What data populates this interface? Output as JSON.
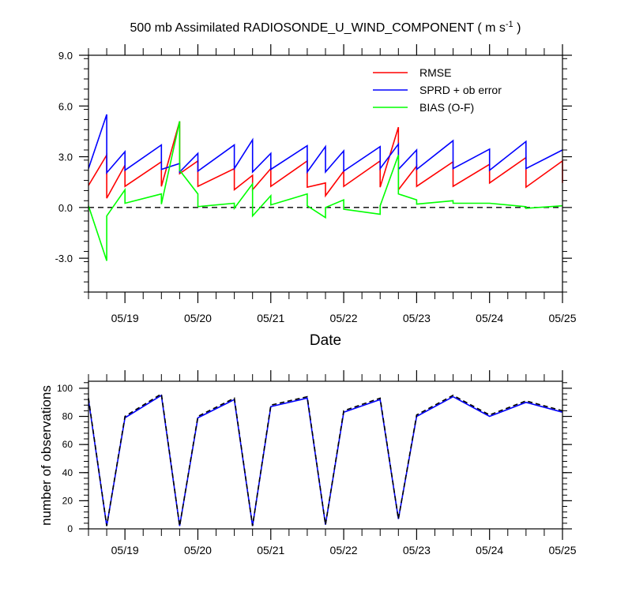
{
  "figure": {
    "title_main": "500 mb Assimilated RADIOSONDE_U_WIND_COMPONENT ( m s",
    "title_sup": "-1",
    "title_end": " )"
  },
  "chart_data": [
    {
      "type": "line",
      "xlabel": "Date",
      "ylabel": "",
      "x_ticks": [
        "05/19",
        "05/20",
        "05/21",
        "05/22",
        "05/23",
        "05/24",
        "05/25"
      ],
      "x_tick_days": [
        19,
        20,
        21,
        22,
        23,
        24,
        25
      ],
      "xlim": [
        18.5,
        25.0
      ],
      "ylim": [
        -5.0,
        9.0
      ],
      "y_ticks": [
        9.0,
        6.0,
        3.0,
        0.0,
        -3.0
      ],
      "y_tick_labels": [
        "9.0",
        "6.0",
        "3.0",
        "0.0",
        "-3.0"
      ],
      "zero_reference_line": {
        "y": 0.0,
        "style": "dashed"
      },
      "legend_position": "top-right",
      "series": [
        {
          "name": "RMSE",
          "color": "#ff0000",
          "x": [
            18.5,
            18.75,
            18.75,
            19.0,
            19.0,
            19.5,
            19.5,
            19.75,
            19.75,
            20.0,
            20.0,
            20.5,
            20.5,
            20.75,
            20.75,
            21.0,
            21.0,
            21.5,
            21.5,
            21.75,
            21.75,
            22.0,
            22.0,
            22.5,
            22.5,
            22.75,
            22.75,
            23.0,
            23.0,
            23.5,
            23.5,
            24.0,
            24.0,
            24.5,
            24.5,
            25.0,
            25.0
          ],
          "y": [
            1.3,
            3.1,
            0.55,
            2.5,
            1.25,
            2.7,
            1.25,
            5.1,
            2.0,
            2.75,
            1.25,
            2.3,
            1.05,
            1.9,
            1.05,
            2.3,
            1.25,
            2.75,
            1.2,
            1.45,
            0.7,
            2.15,
            1.25,
            2.75,
            1.2,
            4.75,
            1.05,
            2.45,
            1.25,
            2.7,
            1.25,
            2.55,
            1.45,
            2.95,
            1.2,
            2.75,
            1.45
          ]
        },
        {
          "name": "SPRD + ob error",
          "color": "#0000ff",
          "x": [
            18.5,
            18.75,
            18.75,
            19.0,
            19.0,
            19.5,
            19.5,
            19.75,
            19.75,
            20.0,
            20.0,
            20.5,
            20.5,
            20.75,
            20.75,
            21.0,
            21.0,
            21.5,
            21.5,
            21.75,
            21.75,
            22.0,
            22.0,
            22.5,
            22.5,
            22.75,
            22.75,
            23.0,
            23.0,
            23.5,
            23.5,
            24.0,
            24.0,
            24.5,
            24.5,
            25.0
          ],
          "y": [
            2.3,
            5.5,
            2.05,
            3.3,
            2.2,
            3.7,
            2.25,
            2.6,
            2.1,
            3.2,
            2.15,
            3.7,
            2.3,
            4.0,
            2.1,
            3.2,
            2.25,
            3.65,
            2.1,
            3.6,
            2.1,
            3.35,
            2.15,
            3.6,
            2.3,
            3.75,
            2.25,
            3.4,
            2.25,
            3.95,
            2.3,
            3.45,
            2.2,
            3.9,
            2.3,
            3.4
          ]
        },
        {
          "name": "BIAS (O-F)",
          "color": "#00ff00",
          "x": [
            18.5,
            18.75,
            18.75,
            19.0,
            19.0,
            19.5,
            19.5,
            19.75,
            19.75,
            20.0,
            20.0,
            20.5,
            20.5,
            20.75,
            20.75,
            21.0,
            21.0,
            21.5,
            21.5,
            21.75,
            21.75,
            22.0,
            22.0,
            22.5,
            22.5,
            22.75,
            22.75,
            23.0,
            23.0,
            23.5,
            23.5,
            24.0,
            24.0,
            24.5,
            24.5,
            25.0
          ],
          "y": [
            0.1,
            -3.15,
            -0.5,
            1.05,
            0.25,
            0.8,
            0.2,
            5.1,
            2.2,
            0.8,
            0.05,
            0.25,
            -0.05,
            1.4,
            -0.5,
            0.7,
            0.15,
            0.8,
            0.1,
            -0.6,
            0.0,
            0.45,
            -0.1,
            -0.4,
            0.1,
            3.1,
            0.8,
            0.45,
            0.2,
            0.4,
            0.25,
            0.25,
            0.25,
            0.05,
            -0.05,
            0.1
          ]
        }
      ]
    },
    {
      "type": "line",
      "xlabel": "",
      "ylabel": "number of observations",
      "x_ticks": [
        "05/19",
        "05/20",
        "05/21",
        "05/22",
        "05/23",
        "05/24",
        "05/25"
      ],
      "x_tick_days": [
        19,
        20,
        21,
        22,
        23,
        24,
        25
      ],
      "xlim": [
        18.5,
        25.0
      ],
      "ylim": [
        0,
        105
      ],
      "y_ticks": [
        0,
        20,
        40,
        60,
        80,
        100
      ],
      "y_tick_labels": [
        "0",
        "20",
        "40",
        "60",
        "80",
        "100"
      ],
      "series": [
        {
          "color": "#0000ff",
          "style": "solid",
          "x": [
            18.5,
            18.75,
            19.0,
            19.5,
            19.75,
            20.0,
            20.5,
            20.75,
            21.0,
            21.5,
            21.75,
            22.0,
            22.5,
            22.75,
            23.0,
            23.5,
            24.0,
            24.5,
            25.0
          ],
          "y": [
            92,
            2,
            79,
            95,
            2,
            79,
            92,
            2,
            87,
            93,
            3,
            83,
            92,
            7,
            80,
            94,
            80,
            90,
            83
          ]
        },
        {
          "color": "#000000",
          "style": "dashed",
          "x": [
            18.5,
            18.75,
            19.0,
            19.5,
            19.75,
            20.0,
            20.5,
            20.75,
            21.0,
            21.5,
            21.75,
            22.0,
            22.5,
            22.75,
            23.0,
            23.5,
            24.0,
            24.5,
            25.0
          ],
          "y": [
            93,
            2,
            80,
            96,
            2,
            80,
            93,
            2,
            88,
            94,
            3,
            84,
            93,
            7,
            81,
            95,
            81,
            91,
            84
          ]
        }
      ]
    }
  ]
}
